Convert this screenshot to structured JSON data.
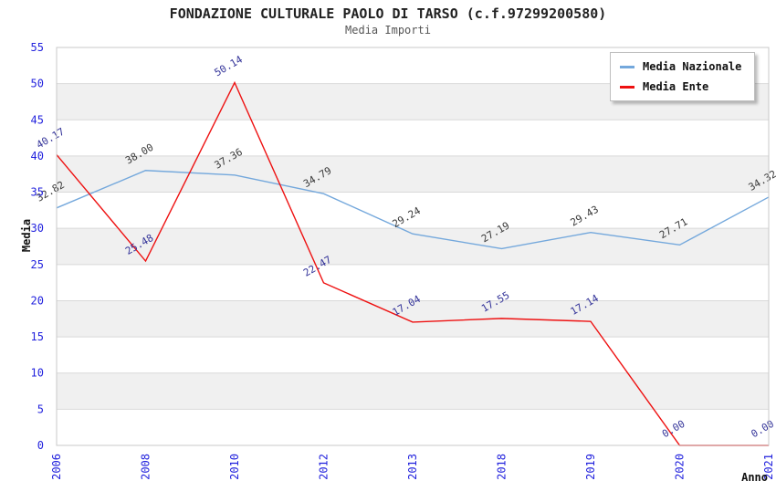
{
  "chart": {
    "title": "FONDAZIONE CULTURALE PAOLO DI TARSO (c.f.97299200580)",
    "subtitle": "Media Importi"
  },
  "chart_data": {
    "type": "line",
    "title": "FONDAZIONE CULTURALE PAOLO DI TARSO (c.f.97299200580)",
    "subtitle": "Media Importi",
    "categories": [
      "2006",
      "2008",
      "2010",
      "2012",
      "2013",
      "2018",
      "2019",
      "2020",
      "2021"
    ],
    "series": [
      {
        "name": "Media Nazionale",
        "color": "#74a8dc",
        "label_color": "#3a3a3a",
        "values": [
          32.82,
          38.0,
          37.36,
          34.79,
          29.24,
          27.19,
          29.43,
          27.71,
          34.32
        ]
      },
      {
        "name": "Media Ente",
        "color": "#ee1111",
        "label_color": "#333399",
        "values": [
          40.17,
          25.48,
          50.14,
          22.47,
          17.04,
          17.55,
          17.14,
          0.0,
          0.0
        ]
      }
    ],
    "xlabel": "Anno",
    "ylabel": "Media",
    "ylim": [
      0,
      55
    ],
    "ytick_step": 5,
    "value_decimals": 2,
    "grid": "horizontal",
    "band_fill": "alternating",
    "legend_position": "top-right",
    "colors": {
      "tick_label": "#2222dd",
      "axis_title": "#111111",
      "band": "#f0f0f0",
      "gridline": "#d9d9d9",
      "frame": "#c9c9c9"
    }
  }
}
